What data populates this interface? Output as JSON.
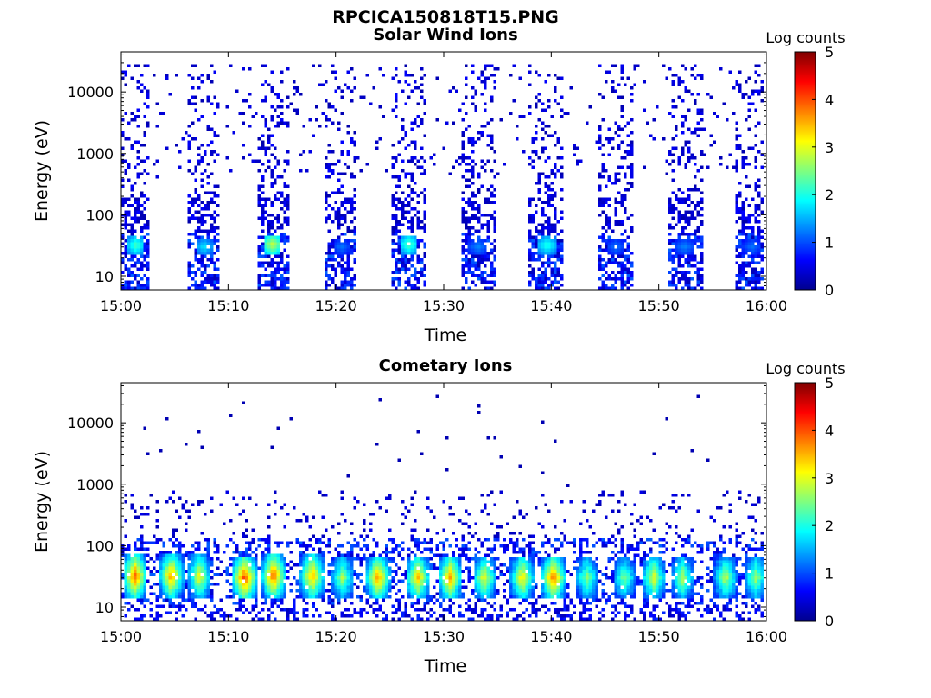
{
  "figure_title": "RPCICA150818T15.PNG",
  "chart_data": [
    {
      "type": "heatmap",
      "title": "Solar Wind Ions",
      "xlabel": "Time",
      "ylabel": "Energy (eV)",
      "x_ticks": [
        "15:00",
        "15:10",
        "15:20",
        "15:30",
        "15:40",
        "15:50",
        "16:00"
      ],
      "x_range_minutes": [
        0,
        60
      ],
      "y_scale": "log",
      "y_range_ev": [
        6,
        45000
      ],
      "y_ticks": [
        "10",
        "100",
        "1000",
        "10000"
      ],
      "y_tick_values": [
        10,
        100,
        1000,
        10000
      ],
      "colorbar": {
        "label": "Log counts",
        "min": 0,
        "max": 5,
        "ticks": [
          "0",
          "1",
          "2",
          "3",
          "4",
          "5"
        ]
      },
      "bursts": [
        {
          "start_min": 0.1,
          "end_min": 2.7,
          "density": 0.85,
          "peak_ev": 32,
          "peak_log_counts": 2.3
        },
        {
          "start_min": 6.3,
          "end_min": 9.2,
          "density": 0.85,
          "peak_ev": 30,
          "peak_log_counts": 1.8
        },
        {
          "start_min": 12.6,
          "end_min": 15.6,
          "density": 0.9,
          "peak_ev": 33,
          "peak_log_counts": 2.9
        },
        {
          "start_min": 19.0,
          "end_min": 22.0,
          "density": 0.7,
          "peak_ev": 30,
          "peak_log_counts": 1.2
        },
        {
          "start_min": 25.2,
          "end_min": 28.3,
          "density": 0.8,
          "peak_ev": 33,
          "peak_log_counts": 2.3
        },
        {
          "start_min": 31.6,
          "end_min": 34.8,
          "density": 0.85,
          "peak_ev": 30,
          "peak_log_counts": 1.3
        },
        {
          "start_min": 38.0,
          "end_min": 41.2,
          "density": 0.85,
          "peak_ev": 32,
          "peak_log_counts": 2.1
        },
        {
          "start_min": 44.4,
          "end_min": 47.6,
          "density": 0.85,
          "peak_ev": 30,
          "peak_log_counts": 1.2
        },
        {
          "start_min": 50.8,
          "end_min": 54.0,
          "density": 0.85,
          "peak_ev": 30,
          "peak_log_counts": 1.3
        },
        {
          "start_min": 57.1,
          "end_min": 60.2,
          "density": 0.85,
          "peak_ev": 30,
          "peak_log_counts": 1.2
        }
      ]
    },
    {
      "type": "heatmap",
      "title": "Cometary Ions",
      "xlabel": "Time",
      "ylabel": "Energy (eV)",
      "x_ticks": [
        "15:00",
        "15:10",
        "15:20",
        "15:30",
        "15:40",
        "15:50",
        "16:00"
      ],
      "x_range_minutes": [
        0,
        60
      ],
      "y_scale": "log",
      "y_range_ev": [
        6,
        45000
      ],
      "y_ticks": [
        "10",
        "100",
        "1000",
        "10000"
      ],
      "y_tick_values": [
        10,
        100,
        1000,
        10000
      ],
      "colorbar": {
        "label": "Log counts",
        "min": 0,
        "max": 5,
        "ticks": [
          "0",
          "1",
          "2",
          "3",
          "4",
          "5"
        ]
      },
      "bursts": [
        {
          "center_min": 1.3,
          "peak_ev": 32,
          "peak_log_counts": 3.9
        },
        {
          "center_min": 4.7,
          "peak_ev": 32,
          "peak_log_counts": 3.6
        },
        {
          "center_min": 7.3,
          "peak_ev": 32,
          "peak_log_counts": 3.0
        },
        {
          "center_min": 11.5,
          "peak_ev": 30,
          "peak_log_counts": 4.1
        },
        {
          "center_min": 14.2,
          "peak_ev": 32,
          "peak_log_counts": 3.9
        },
        {
          "center_min": 17.8,
          "peak_ev": 32,
          "peak_log_counts": 3.5
        },
        {
          "center_min": 20.6,
          "peak_ev": 30,
          "peak_log_counts": 2.6
        },
        {
          "center_min": 23.9,
          "peak_ev": 30,
          "peak_log_counts": 3.6
        },
        {
          "center_min": 27.6,
          "peak_ev": 30,
          "peak_log_counts": 3.4
        },
        {
          "center_min": 30.6,
          "peak_ev": 30,
          "peak_log_counts": 3.5
        },
        {
          "center_min": 33.8,
          "peak_ev": 30,
          "peak_log_counts": 3.0
        },
        {
          "center_min": 37.3,
          "peak_ev": 30,
          "peak_log_counts": 3.2
        },
        {
          "center_min": 40.2,
          "peak_ev": 30,
          "peak_log_counts": 3.8
        },
        {
          "center_min": 43.3,
          "peak_ev": 30,
          "peak_log_counts": 2.5
        },
        {
          "center_min": 46.8,
          "peak_ev": 30,
          "peak_log_counts": 2.4
        },
        {
          "center_min": 49.5,
          "peak_ev": 30,
          "peak_log_counts": 2.9
        },
        {
          "center_min": 52.2,
          "peak_ev": 30,
          "peak_log_counts": 2.6
        },
        {
          "center_min": 56.2,
          "peak_ev": 30,
          "peak_log_counts": 2.7
        },
        {
          "center_min": 59.0,
          "peak_ev": 30,
          "peak_log_counts": 2.6
        }
      ]
    }
  ]
}
